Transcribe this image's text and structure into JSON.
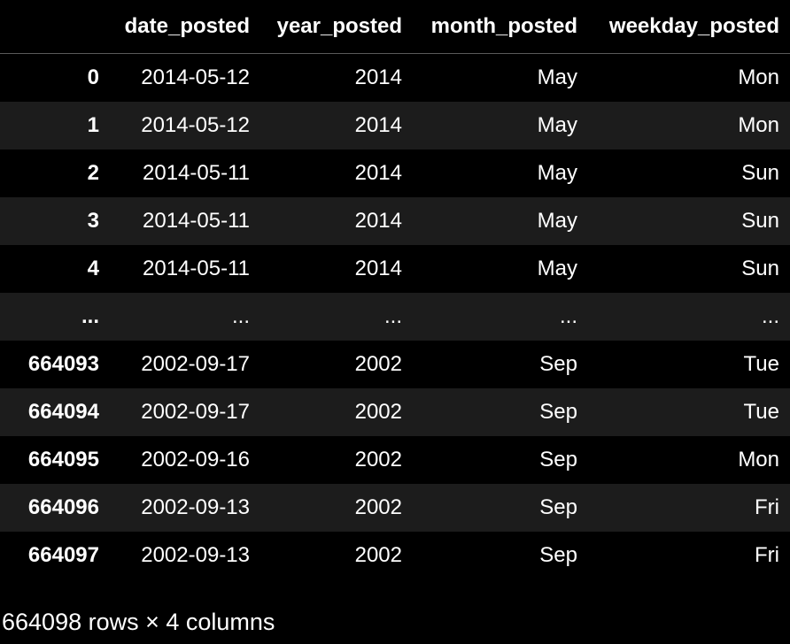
{
  "table": {
    "columns": [
      "",
      "date_posted",
      "year_posted",
      "month_posted",
      "weekday_posted"
    ],
    "rows": [
      {
        "index": "0",
        "date_posted": "2014-05-12",
        "year_posted": "2014",
        "month_posted": "May",
        "weekday_posted": "Mon"
      },
      {
        "index": "1",
        "date_posted": "2014-05-12",
        "year_posted": "2014",
        "month_posted": "May",
        "weekday_posted": "Mon"
      },
      {
        "index": "2",
        "date_posted": "2014-05-11",
        "year_posted": "2014",
        "month_posted": "May",
        "weekday_posted": "Sun"
      },
      {
        "index": "3",
        "date_posted": "2014-05-11",
        "year_posted": "2014",
        "month_posted": "May",
        "weekday_posted": "Sun"
      },
      {
        "index": "4",
        "date_posted": "2014-05-11",
        "year_posted": "2014",
        "month_posted": "May",
        "weekday_posted": "Sun"
      },
      {
        "index": "...",
        "date_posted": "...",
        "year_posted": "...",
        "month_posted": "...",
        "weekday_posted": "..."
      },
      {
        "index": "664093",
        "date_posted": "2002-09-17",
        "year_posted": "2002",
        "month_posted": "Sep",
        "weekday_posted": "Tue"
      },
      {
        "index": "664094",
        "date_posted": "2002-09-17",
        "year_posted": "2002",
        "month_posted": "Sep",
        "weekday_posted": "Tue"
      },
      {
        "index": "664095",
        "date_posted": "2002-09-16",
        "year_posted": "2002",
        "month_posted": "Sep",
        "weekday_posted": "Mon"
      },
      {
        "index": "664096",
        "date_posted": "2002-09-13",
        "year_posted": "2002",
        "month_posted": "Sep",
        "weekday_posted": "Fri"
      },
      {
        "index": "664097",
        "date_posted": "2002-09-13",
        "year_posted": "2002",
        "month_posted": "Sep",
        "weekday_posted": "Fri"
      }
    ]
  },
  "caption": "664098 rows × 4 columns",
  "colors": {
    "background": "#000000",
    "stripe": "#1c1c1c",
    "text": "#ffffff",
    "header_rule": "#5a5a5a"
  }
}
